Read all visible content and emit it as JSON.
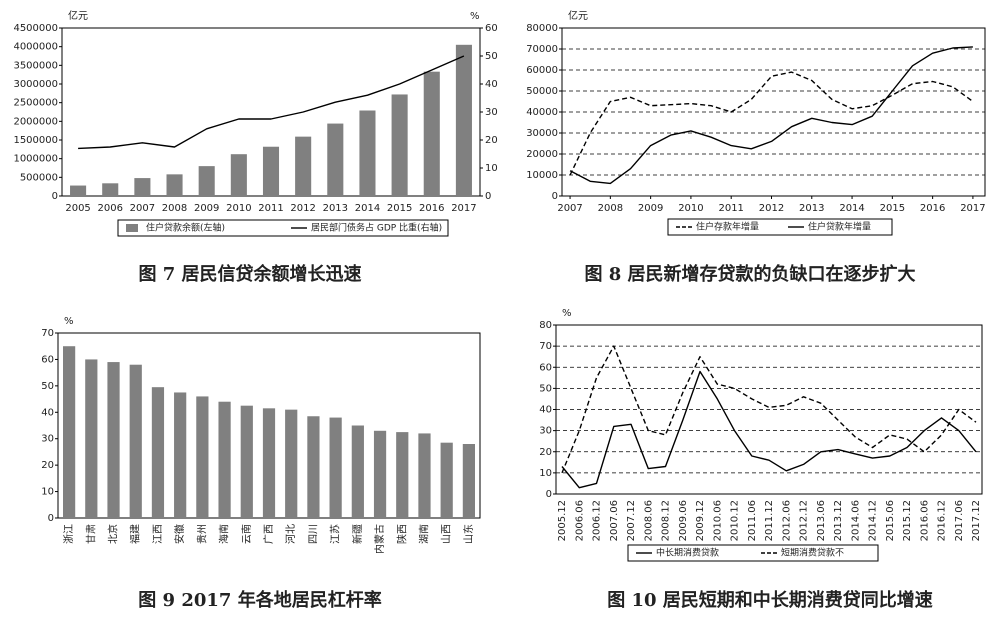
{
  "chart_data": [
    {
      "type": "bar",
      "title": "图 7  居民信贷余额增长迅速",
      "ylabel": "亿元",
      "y2label": "%",
      "categories": [
        "2005",
        "2006",
        "2007",
        "2008",
        "2009",
        "2010",
        "2011",
        "2012",
        "2013",
        "2014",
        "2015",
        "2016",
        "2017"
      ],
      "series": [
        {
          "name": "住户贷款余额(左轴)",
          "color": "#808080",
          "values": [
            280000,
            340000,
            480000,
            580000,
            800000,
            1120000,
            1320000,
            1590000,
            1940000,
            2290000,
            2720000,
            3330000,
            4050000
          ]
        },
        {
          "name": "居民部门债务占 GDP 比重(右轴)",
          "type": "line",
          "axis": "y2",
          "color": "#000000",
          "values": [
            17,
            17.5,
            19,
            17.5,
            24,
            27.5,
            27.5,
            30,
            33.5,
            36,
            40,
            45,
            50
          ]
        }
      ],
      "ylim": [
        0,
        4500000
      ],
      "yticks": [
        0,
        500000,
        1000000,
        1500000,
        2000000,
        2500000,
        3000000,
        3500000,
        4000000,
        4500000
      ],
      "y2lim": [
        0,
        60
      ],
      "y2ticks": [
        0,
        10,
        20,
        30,
        40,
        50,
        60
      ],
      "grid": false
    },
    {
      "type": "line",
      "title": "图 8  居民新增存贷款的负缺口在逐步扩大",
      "ylabel": "亿元",
      "x": [
        2007,
        2007.5,
        2008,
        2008.5,
        2009,
        2009.5,
        2010,
        2010.5,
        2011,
        2011.5,
        2012,
        2012.5,
        2013,
        2013.5,
        2014,
        2014.5,
        2015,
        2015.5,
        2016,
        2016.5,
        2017
      ],
      "series": [
        {
          "name": "住户存款年增量",
          "dash": true,
          "color": "#000000",
          "values": [
            10000,
            30000,
            45000,
            47000,
            43000,
            43500,
            44000,
            43000,
            40000,
            46000,
            57000,
            59000,
            55000,
            46000,
            41500,
            43000,
            48000,
            53500,
            54500,
            52000,
            45000
          ]
        },
        {
          "name": "住户贷款年增量",
          "dash": false,
          "color": "#000000",
          "values": [
            12000,
            7000,
            6000,
            13000,
            24000,
            29000,
            31000,
            28000,
            24000,
            22500,
            26000,
            33000,
            37000,
            35000,
            34000,
            38000,
            50000,
            62000,
            68000,
            70500,
            71000
          ]
        }
      ],
      "xlim": [
        2006.8,
        2017.3
      ],
      "xticks": [
        2007,
        2008,
        2009,
        2010,
        2011,
        2012,
        2013,
        2014,
        2015,
        2016,
        2017
      ],
      "ylim": [
        0,
        80000
      ],
      "yticks": [
        0,
        10000,
        20000,
        30000,
        40000,
        50000,
        60000,
        70000,
        80000
      ],
      "grid": true
    },
    {
      "type": "bar",
      "title": "图 9  2017 年各地居民杠杆率",
      "ylabel": "%",
      "categories": [
        "浙江",
        "甘肃",
        "北京",
        "福建",
        "江西",
        "安徽",
        "贵州",
        "海南",
        "云南",
        "广西",
        "河北",
        "四川",
        "江苏",
        "新疆",
        "内蒙古",
        "陕西",
        "湖南",
        "山西",
        "山东"
      ],
      "series": [
        {
          "name": "居民杠杆率",
          "color": "#808080",
          "values": [
            65,
            60,
            59,
            58,
            49.5,
            47.5,
            46,
            44,
            42.5,
            41.5,
            41,
            38.5,
            38,
            35,
            33,
            32.5,
            32,
            28.5,
            28
          ]
        }
      ],
      "ylim": [
        0,
        70
      ],
      "yticks": [
        0,
        10,
        20,
        30,
        40,
        50,
        60,
        70
      ],
      "grid": false
    },
    {
      "type": "line",
      "title": "图 10  居民短期和中长期消费贷同比增速",
      "ylabel": "%",
      "categories": [
        "2005.12",
        "2006.06",
        "2006.12",
        "2007.06",
        "2007.12",
        "2008.06",
        "2008.12",
        "2009.06",
        "2009.12",
        "2010.06",
        "2010.12",
        "2011.06",
        "2011.12",
        "2012.06",
        "2012.12",
        "2013.06",
        "2013.12",
        "2014.06",
        "2014.12",
        "2015.06",
        "2015.12",
        "2016.06",
        "2016.12",
        "2017.06",
        "2017.12"
      ],
      "series": [
        {
          "name": "中长期消费贷款",
          "dash": false,
          "color": "#000000",
          "values": [
            13,
            3,
            5,
            32,
            33,
            12,
            13,
            35,
            58,
            45,
            30,
            18,
            16,
            11,
            14,
            20,
            21,
            19,
            17,
            18,
            22,
            30,
            36,
            30,
            20
          ]
        },
        {
          "name": "短期消费贷款不",
          "dash": true,
          "color": "#000000",
          "values": [
            10,
            30,
            55,
            70,
            50,
            30,
            28,
            48,
            65,
            52,
            50,
            45,
            41,
            42,
            46,
            43,
            35,
            27,
            22,
            28,
            26,
            20,
            28,
            40,
            34
          ]
        }
      ],
      "ylim": [
        0,
        80
      ],
      "yticks": [
        0,
        10,
        20,
        30,
        40,
        50,
        60,
        70,
        80
      ],
      "grid": true
    }
  ]
}
